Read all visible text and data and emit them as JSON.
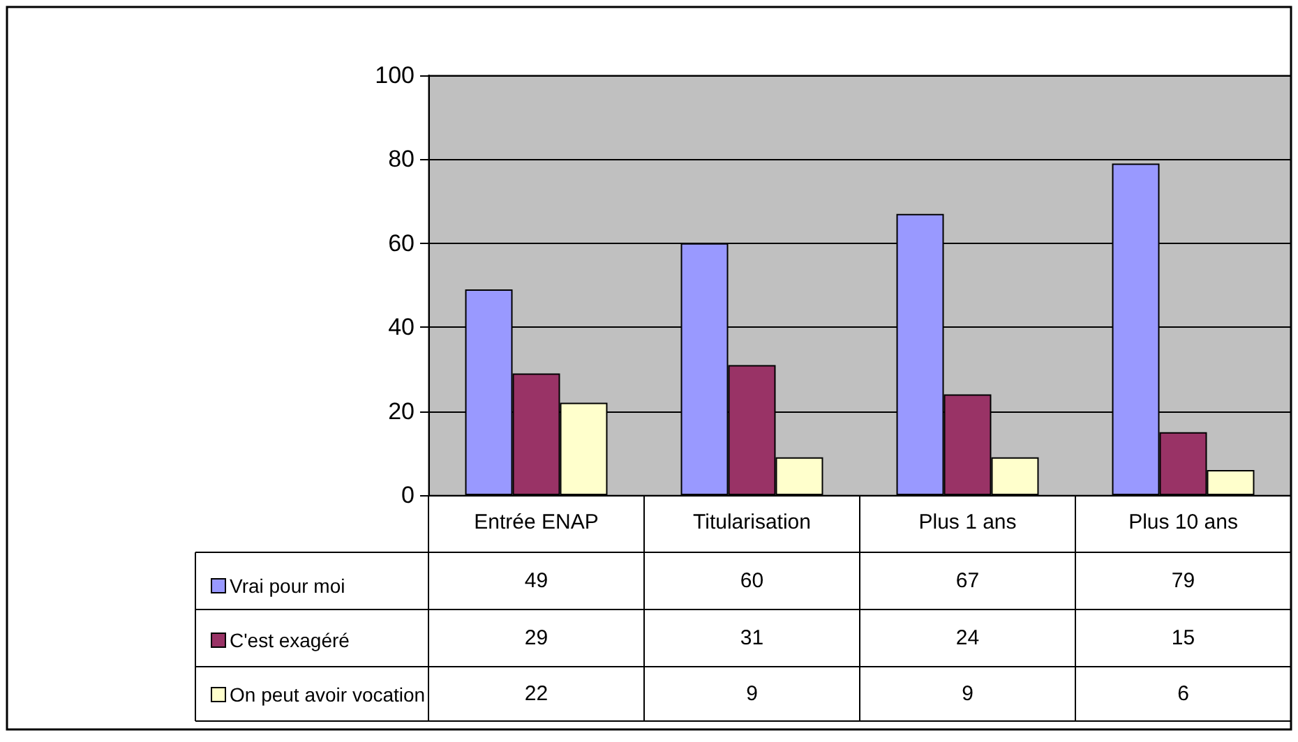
{
  "chart_data": {
    "type": "bar",
    "categories": [
      "Entrée ENAP",
      "Titularisation",
      "Plus 1 ans",
      "Plus 10 ans"
    ],
    "series": [
      {
        "name": "Vrai pour moi",
        "color": "#9999ff",
        "values": [
          49,
          60,
          67,
          79
        ]
      },
      {
        "name": "C'est exagéré",
        "color": "#993366",
        "values": [
          29,
          31,
          24,
          15
        ]
      },
      {
        "name": "On peut avoir vocation",
        "color": "#ffffcc",
        "values": [
          22,
          9,
          9,
          6
        ]
      }
    ],
    "ylim": [
      0,
      100
    ],
    "yticks": [
      0,
      20,
      40,
      60,
      80,
      100
    ],
    "grid": "y",
    "legend": "bottom left",
    "data_labels": true
  }
}
